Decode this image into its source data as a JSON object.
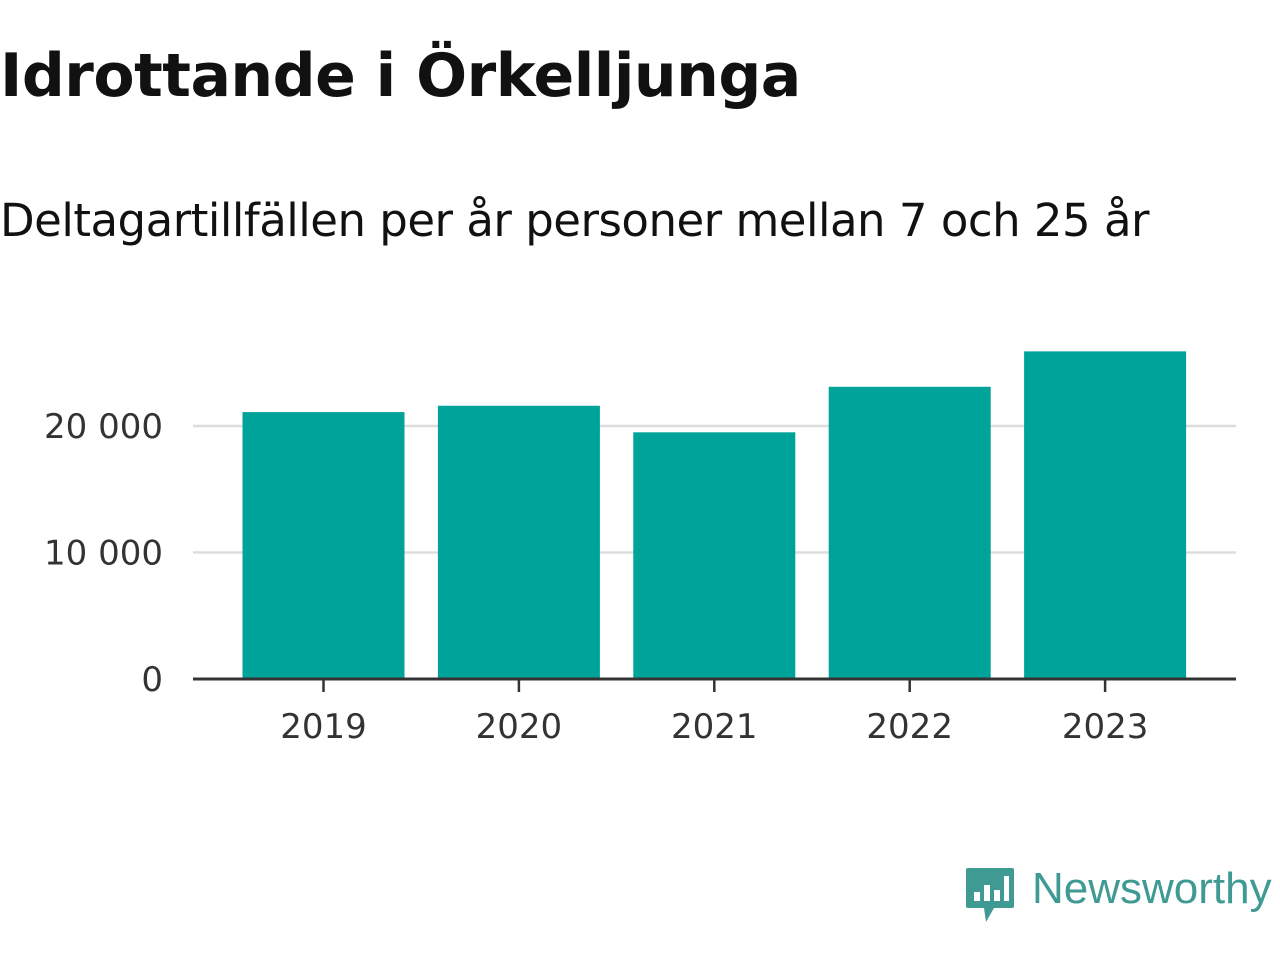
{
  "chart_data": {
    "type": "bar",
    "title": "Idrottande i Örkelljunga",
    "subtitle": "Deltagartillfällen per år personer mellan 7 och 25 år",
    "xlabel": "",
    "ylabel": "",
    "categories": [
      "2019",
      "2020",
      "2021",
      "2022",
      "2023"
    ],
    "values": [
      21100,
      21600,
      19500,
      23100,
      25900
    ],
    "ylim": [
      0,
      28000
    ],
    "yticks": [
      0,
      10000,
      20000
    ],
    "ytick_labels": [
      "0",
      "10 000",
      "20 000"
    ],
    "grid": true,
    "legend": "none",
    "bar_color": "#00a39a",
    "grid_color": "#dddddd",
    "axis_color": "#333333"
  },
  "branding": {
    "name": "Newsworthy",
    "color": "#3f9a94",
    "icon": "newsworthy-chat-bars-icon"
  }
}
